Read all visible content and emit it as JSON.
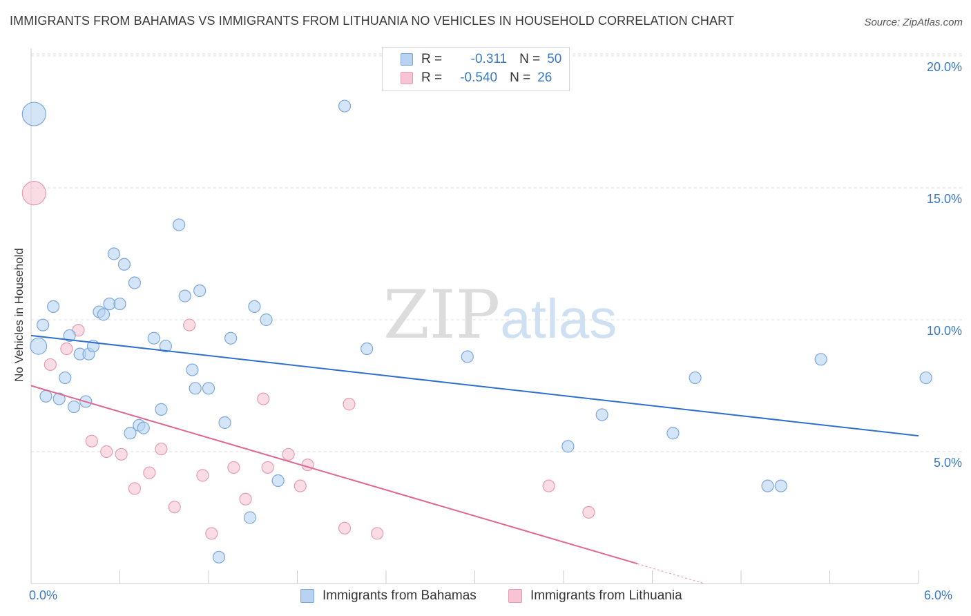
{
  "title": "IMMIGRANTS FROM BAHAMAS VS IMMIGRANTS FROM LITHUANIA NO VEHICLES IN HOUSEHOLD CORRELATION CHART",
  "source": "Source: ZipAtlas.com",
  "watermark": {
    "zip": "ZIP",
    "atlas": "atlas"
  },
  "legend": {
    "rows": [
      {
        "r_label": "R =",
        "r_value": "-0.311",
        "n_label": "N =",
        "n_value": "50"
      },
      {
        "r_label": "R =",
        "r_value": "-0.540",
        "n_label": "N =",
        "n_value": "26"
      }
    ]
  },
  "colors": {
    "bahamas_fill": "#b8d3f2",
    "bahamas_stroke": "#7ba7dc",
    "bahamas_line": "#2f6fcc",
    "lithuania_fill": "#f7c4d4",
    "lithuania_stroke": "#e79ab4",
    "lithuania_line": "#e0668f",
    "axis_label": "#3a78c6",
    "grid": "#dcdcdc"
  },
  "chart_data": {
    "type": "scatter",
    "title": "IMMIGRANTS FROM BAHAMAS VS IMMIGRANTS FROM LITHUANIA NO VEHICLES IN HOUSEHOLD CORRELATION CHART",
    "xlabel": "",
    "ylabel": "No Vehicles in Household",
    "xlim": [
      0,
      6
    ],
    "ylim": [
      0,
      20.5
    ],
    "x_tick_labels": [
      "0.0%",
      "6.0%"
    ],
    "y_tick_labels": [
      "5.0%",
      "10.0%",
      "15.0%",
      "20.0%"
    ],
    "y_ticks": [
      5,
      10,
      15,
      20
    ],
    "series": [
      {
        "name": "Immigrants from Bahamas",
        "color": "#b8d3f2",
        "trend": {
          "x": [
            0.0,
            6.0
          ],
          "y": [
            9.4,
            5.6
          ]
        },
        "points": [
          {
            "x": 0.02,
            "y": 17.8,
            "s": 2
          },
          {
            "x": 0.05,
            "y": 9.0,
            "s": 1.4
          },
          {
            "x": 0.08,
            "y": 9.8
          },
          {
            "x": 0.1,
            "y": 7.1
          },
          {
            "x": 0.15,
            "y": 10.5
          },
          {
            "x": 0.19,
            "y": 7.0
          },
          {
            "x": 0.23,
            "y": 7.8
          },
          {
            "x": 0.26,
            "y": 9.4
          },
          {
            "x": 0.29,
            "y": 6.7
          },
          {
            "x": 0.33,
            "y": 8.7
          },
          {
            "x": 0.37,
            "y": 6.9
          },
          {
            "x": 0.39,
            "y": 8.7
          },
          {
            "x": 0.42,
            "y": 9.0
          },
          {
            "x": 0.46,
            "y": 10.3
          },
          {
            "x": 0.49,
            "y": 10.2
          },
          {
            "x": 0.53,
            "y": 10.6
          },
          {
            "x": 0.56,
            "y": 12.5
          },
          {
            "x": 0.6,
            "y": 10.6
          },
          {
            "x": 0.63,
            "y": 12.1
          },
          {
            "x": 0.67,
            "y": 5.7
          },
          {
            "x": 0.7,
            "y": 11.4
          },
          {
            "x": 0.73,
            "y": 6.0
          },
          {
            "x": 0.76,
            "y": 5.9
          },
          {
            "x": 0.83,
            "y": 9.3
          },
          {
            "x": 0.88,
            "y": 6.6
          },
          {
            "x": 0.91,
            "y": 9.0
          },
          {
            "x": 1.0,
            "y": 13.6
          },
          {
            "x": 1.04,
            "y": 10.9
          },
          {
            "x": 1.09,
            "y": 8.1
          },
          {
            "x": 1.11,
            "y": 7.4
          },
          {
            "x": 1.14,
            "y": 11.1
          },
          {
            "x": 1.2,
            "y": 7.4
          },
          {
            "x": 1.27,
            "y": 1.0
          },
          {
            "x": 1.31,
            "y": 6.1
          },
          {
            "x": 1.35,
            "y": 9.3
          },
          {
            "x": 1.48,
            "y": 2.5
          },
          {
            "x": 1.51,
            "y": 10.5
          },
          {
            "x": 1.59,
            "y": 10.0
          },
          {
            "x": 1.67,
            "y": 3.9
          },
          {
            "x": 2.12,
            "y": 18.1
          },
          {
            "x": 2.27,
            "y": 8.9
          },
          {
            "x": 2.95,
            "y": 8.6
          },
          {
            "x": 3.63,
            "y": 5.2
          },
          {
            "x": 3.86,
            "y": 6.4
          },
          {
            "x": 4.34,
            "y": 5.7
          },
          {
            "x": 4.49,
            "y": 7.8
          },
          {
            "x": 4.98,
            "y": 3.7
          },
          {
            "x": 5.07,
            "y": 3.7
          },
          {
            "x": 5.34,
            "y": 8.5
          },
          {
            "x": 6.05,
            "y": 7.8
          }
        ]
      },
      {
        "name": "Immigrants from Lithuania",
        "color": "#f7c4d4",
        "trend": {
          "x": [
            0.0,
            4.1
          ],
          "y": [
            7.5,
            0.75
          ]
        },
        "trend_dashed": {
          "x": [
            4.1,
            4.55
          ],
          "y": [
            0.75,
            0.0
          ]
        },
        "points": [
          {
            "x": 0.02,
            "y": 14.8,
            "s": 2
          },
          {
            "x": 0.13,
            "y": 8.3
          },
          {
            "x": 0.24,
            "y": 8.9
          },
          {
            "x": 0.32,
            "y": 9.6
          },
          {
            "x": 0.41,
            "y": 5.4
          },
          {
            "x": 0.51,
            "y": 5.0
          },
          {
            "x": 0.61,
            "y": 4.9
          },
          {
            "x": 0.7,
            "y": 3.6
          },
          {
            "x": 0.8,
            "y": 4.2
          },
          {
            "x": 0.88,
            "y": 5.1
          },
          {
            "x": 0.97,
            "y": 2.9
          },
          {
            "x": 1.07,
            "y": 9.8
          },
          {
            "x": 1.16,
            "y": 4.1
          },
          {
            "x": 1.22,
            "y": 1.9
          },
          {
            "x": 1.37,
            "y": 4.4
          },
          {
            "x": 1.45,
            "y": 3.2
          },
          {
            "x": 1.57,
            "y": 7.0
          },
          {
            "x": 1.6,
            "y": 4.4
          },
          {
            "x": 1.74,
            "y": 4.9
          },
          {
            "x": 1.82,
            "y": 3.7
          },
          {
            "x": 1.87,
            "y": 4.5
          },
          {
            "x": 2.12,
            "y": 2.1
          },
          {
            "x": 2.15,
            "y": 6.8
          },
          {
            "x": 2.34,
            "y": 1.9
          },
          {
            "x": 3.5,
            "y": 3.7
          },
          {
            "x": 3.77,
            "y": 2.7
          }
        ]
      }
    ]
  },
  "bottom_legend": [
    "Immigrants from Bahamas",
    "Immigrants from Lithuania"
  ]
}
